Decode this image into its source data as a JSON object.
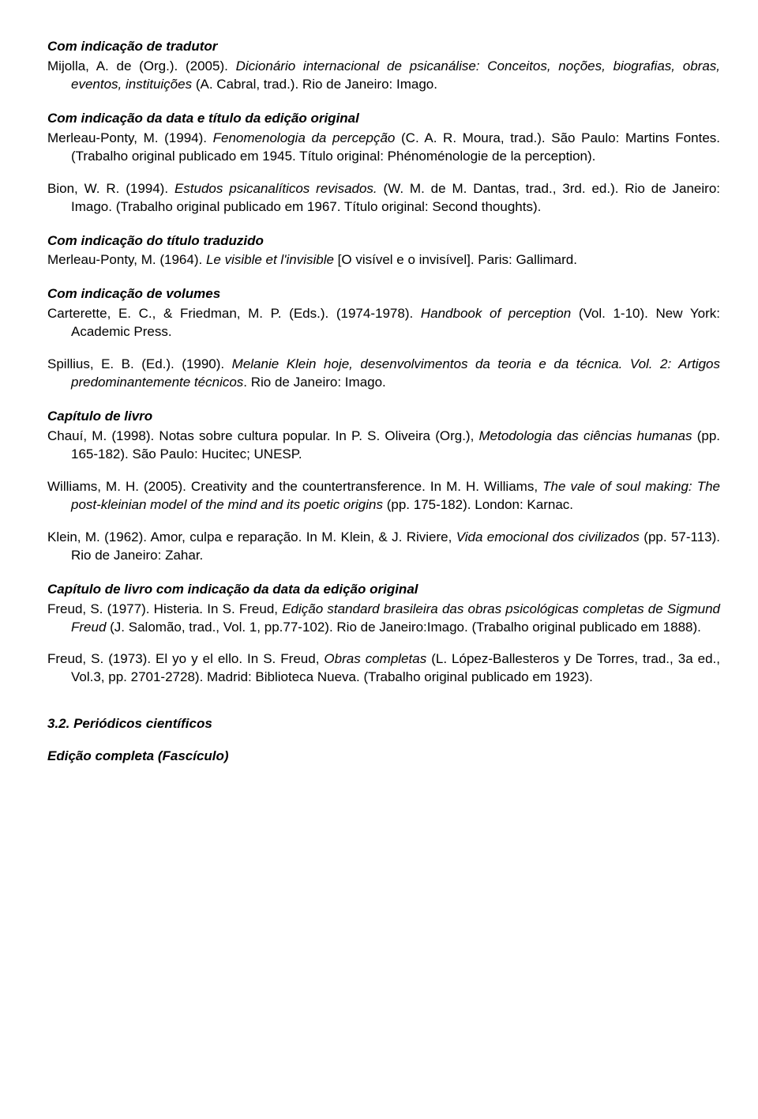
{
  "s1": {
    "title": "Com indicação de tradutor",
    "entry": "Mijolla, A. de (Org.). (2005). <span class='italic'>Dicionário internacional de psicanálise: Conceitos, noções, biografias, obras, eventos, instituições</span> (A. Cabral, trad.). Rio de Janeiro: Imago."
  },
  "s2": {
    "title": "Com indicação da data e título da edição original",
    "e1": "Merleau-Ponty, M. (1994). <span class='italic'>Fenomenologia da percepção</span> (C. A. R. Moura, trad.). São Paulo: Martins Fontes. (Trabalho original publicado em 1945. Título original: Phénoménologie de la perception).",
    "e2": "Bion, W. R. (1994). <span class='italic'>Estudos psicanalíticos revisados.</span> (W. M. de M. Dantas, trad., 3rd. ed.). Rio de Janeiro: Imago. (Trabalho original publicado em 1967. Título original: Second thoughts)."
  },
  "s3": {
    "title": "Com indicação do título traduzido",
    "entry": "Merleau-Ponty, M. (1964). <span class='italic'>Le visible et l'invisible</span> [O visível e o invisível]. Paris: Gallimard."
  },
  "s4": {
    "title": "Com indicação de volumes",
    "e1": "Carterette, E. C., & Friedman, M. P. (Eds.). (1974-1978). <span class='italic'>Handbook of perception</span> (Vol. 1-10). New York: Academic Press.",
    "e2": "Spillius, E. B. (Ed.). (1990). <span class='italic'>Melanie Klein hoje, desenvolvimentos da teoria e da técnica. Vol. 2: Artigos predominantemente técnicos</span>. Rio de Janeiro: Imago."
  },
  "s5": {
    "title": "Capítulo de livro",
    "e1": "Chauí, M. (1998). Notas sobre cultura popular. In P. S. Oliveira (Org.), <span class='italic'>Metodologia das ciências humanas</span> (pp. 165-182). São Paulo: Hucitec; UNESP.",
    "e2": "Williams, M. H. (2005). Creativity and the countertransference. In M. H. Williams, <span class='italic'>The vale of soul making: The post-kleinian model of the mind and its poetic origins</span> (pp. 175-182). London: Karnac.",
    "e3": "Klein, M. (1962). Amor, culpa e reparação. In M. Klein, & J. Riviere, <span class='italic'>Vida emocional dos civilizados</span> (pp. 57-113). Rio de Janeiro: Zahar."
  },
  "s6": {
    "title": "Capítulo de livro com indicação da data da edição original",
    "e1": "Freud, S. (1977). Histeria. In S. Freud, <span class='italic'>Edição standard brasileira das obras psicológicas completas de Sigmund Freud</span> (J. Salomão, trad., Vol. 1, pp.77-102). Rio de Janeiro:Imago. (Trabalho original publicado em 1888).",
    "e2": "Freud, S. (1973). El yo y el ello. In S. Freud, <span class='italic'>Obras completas</span> (L. López-Ballesteros y De Torres, trad., 3a ed., Vol.3, pp. 2701-2728). Madrid: Biblioteca Nueva. (Trabalho original publicado em 1923)."
  },
  "s7": {
    "title": "3.2. Periódicos científicos",
    "sub": "Edição completa (Fascículo)"
  }
}
